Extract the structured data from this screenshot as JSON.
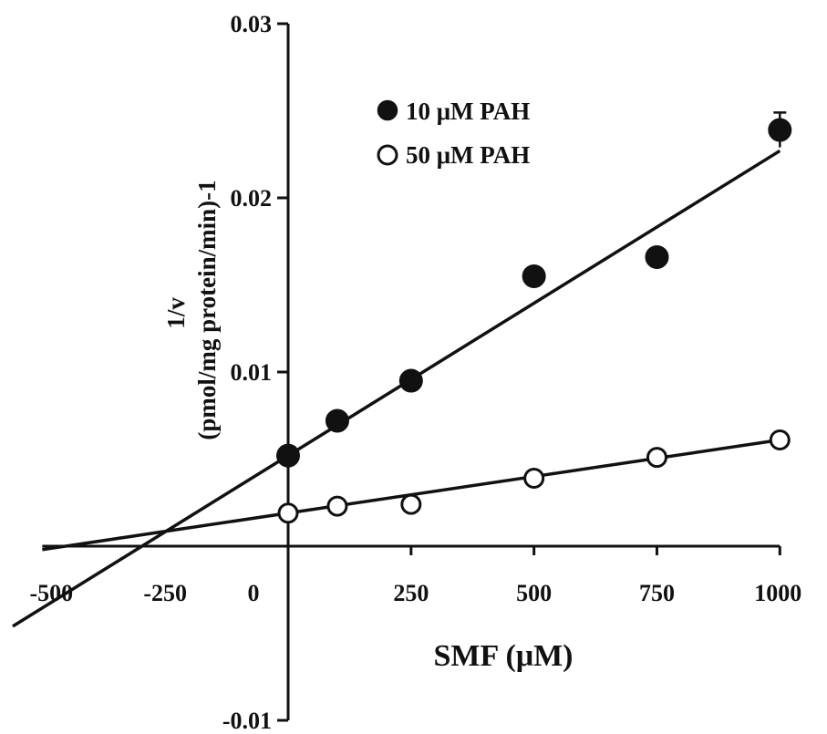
{
  "chart_data": {
    "type": "scatter",
    "xlabel": "SMF (μM)",
    "ylabel_lines": [
      "1/v",
      "(pmol/mg protein/min)-1"
    ],
    "xlim": [
      -500,
      1000
    ],
    "ylim": [
      -0.01,
      0.03
    ],
    "x_ticks": [
      -500,
      -250,
      0,
      250,
      500,
      750,
      1000
    ],
    "x_tick_labels": [
      "-500",
      "-250",
      "0",
      "250",
      "500",
      "750",
      "1000"
    ],
    "y_ticks": [
      -0.01,
      0.01,
      0.02,
      0.03
    ],
    "y_tick_labels": [
      "-0.01",
      "0.01",
      "0.02",
      "0.03"
    ],
    "grid": false,
    "legend_placement": "top-right",
    "series": [
      {
        "name": "10 μM PAH",
        "marker": "filled-circle",
        "color": "#111111",
        "points": [
          {
            "x": 0,
            "y": 0.0052
          },
          {
            "x": 100,
            "y": 0.0072
          },
          {
            "x": 250,
            "y": 0.0095
          },
          {
            "x": 500,
            "y": 0.0155
          },
          {
            "x": 750,
            "y": 0.0166
          },
          {
            "x": 1000,
            "y": 0.0239,
            "err": 0.001
          }
        ],
        "fit": {
          "slope": 1.75e-05,
          "intercept": 0.0052
        }
      },
      {
        "name": "50 μM PAH",
        "marker": "open-circle",
        "color": "#111111",
        "points": [
          {
            "x": 0,
            "y": 0.0019
          },
          {
            "x": 100,
            "y": 0.0023
          },
          {
            "x": 250,
            "y": 0.0024
          },
          {
            "x": 500,
            "y": 0.0039
          },
          {
            "x": 750,
            "y": 0.0051
          },
          {
            "x": 1000,
            "y": 0.0061
          }
        ],
        "fit": {
          "slope": 4.2e-06,
          "intercept": 0.0019
        }
      }
    ]
  }
}
